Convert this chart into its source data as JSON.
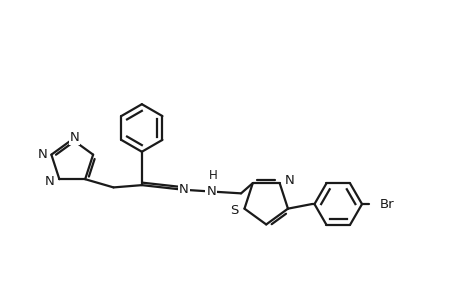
{
  "background_color": "#ffffff",
  "line_color": "#1a1a1a",
  "line_width": 1.6,
  "font_size": 9.5,
  "figsize": [
    4.6,
    3.0
  ],
  "dpi": 100,
  "xlim": [
    0.0,
    10.0
  ],
  "ylim": [
    1.5,
    6.5
  ]
}
